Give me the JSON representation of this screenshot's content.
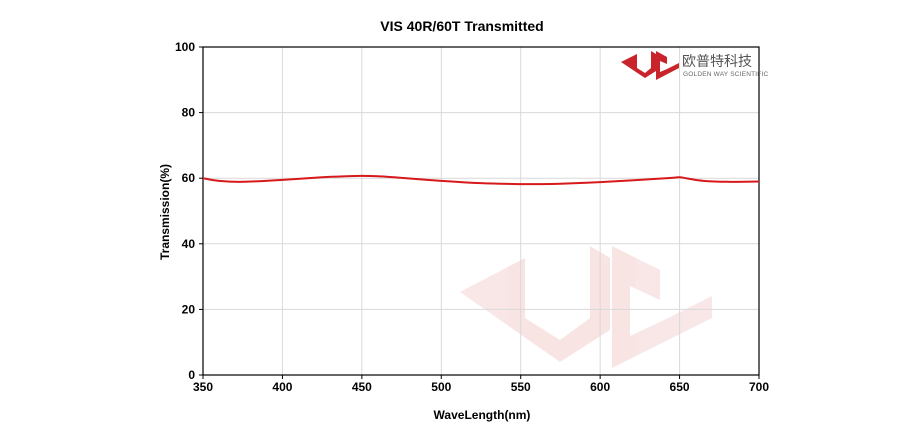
{
  "chart_data": {
    "type": "line",
    "title": "VIS 40R/60T Transmitted",
    "xlabel": "WaveLength(nm)",
    "ylabel": "Transmission(%)",
    "xlim": [
      350,
      700
    ],
    "ylim": [
      0,
      100
    ],
    "xticks": [
      350,
      400,
      450,
      500,
      550,
      600,
      650,
      700
    ],
    "yticks": [
      0,
      20,
      40,
      60,
      80,
      100
    ],
    "grid": true,
    "series": [
      {
        "color": "#d7191c",
        "x": [
          350,
          360,
          375,
          400,
          425,
          440,
          450,
          460,
          475,
          500,
          525,
          550,
          560,
          575,
          600,
          625,
          645,
          650,
          655,
          665,
          680,
          700
        ],
        "y": [
          60.0,
          59.2,
          58.9,
          59.5,
          60.3,
          60.6,
          60.7,
          60.6,
          60.1,
          59.2,
          58.5,
          58.2,
          58.2,
          58.3,
          58.8,
          59.5,
          60.1,
          60.3,
          59.9,
          59.2,
          58.9,
          59.0
        ]
      }
    ]
  },
  "brand": {
    "name_cn": "欧普特科技",
    "name_en": "GOLDEN WAY SCIENTIFIC",
    "color": "#c9242b"
  }
}
